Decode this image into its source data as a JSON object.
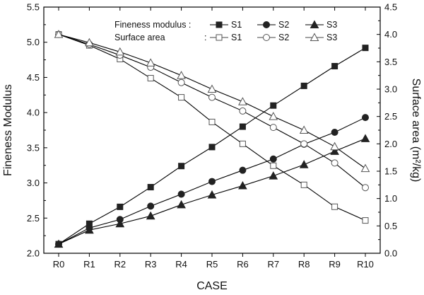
{
  "chart_data": {
    "type": "line",
    "categories": [
      "R0",
      "R1",
      "R2",
      "R3",
      "R4",
      "R5",
      "R6",
      "R7",
      "R8",
      "R9",
      "R10"
    ],
    "xlabel": "CASE",
    "ylabel_left": "Fineness Modulus",
    "ylabel_right": "Surface area (m²/kg)",
    "ylim_left": [
      2.0,
      5.5
    ],
    "yticks_left": [
      "2.0",
      "2.5",
      "3.0",
      "3.5",
      "4.0",
      "4.5",
      "5.0",
      "5.5"
    ],
    "ylim_right": [
      0.0,
      4.5
    ],
    "yticks_right": [
      "0.0",
      "0.5",
      "1.0",
      "1.5",
      "2.0",
      "2.5",
      "3.0",
      "3.5",
      "4.0",
      "4.5"
    ],
    "grid": false,
    "legend_placement": "top-right",
    "legend": {
      "row1_label": "Fineness modulus :",
      "row2_label": "Surface area",
      "row2_colon": ":",
      "names": [
        "S1",
        "S2",
        "S3"
      ]
    },
    "series": [
      {
        "name": "S1",
        "group": "Fineness modulus",
        "axis": "left",
        "marker": "square",
        "filled": true,
        "values": [
          2.13,
          2.42,
          2.66,
          2.94,
          3.24,
          3.51,
          3.8,
          4.1,
          4.38,
          4.66,
          4.92
        ]
      },
      {
        "name": "S2",
        "group": "Fineness modulus",
        "axis": "left",
        "marker": "circle",
        "filled": true,
        "values": [
          2.13,
          2.36,
          2.48,
          2.67,
          2.84,
          3.02,
          3.18,
          3.34,
          3.55,
          3.72,
          3.93
        ]
      },
      {
        "name": "S3",
        "group": "Fineness modulus",
        "axis": "left",
        "marker": "triangle",
        "filled": true,
        "values": [
          2.13,
          2.33,
          2.42,
          2.53,
          2.69,
          2.83,
          2.96,
          3.1,
          3.26,
          3.45,
          3.63
        ]
      },
      {
        "name": "S1",
        "group": "Surface area",
        "axis": "right",
        "marker": "square",
        "filled": false,
        "values": [
          4.0,
          3.8,
          3.55,
          3.2,
          2.85,
          2.4,
          2.0,
          1.6,
          1.25,
          0.85,
          0.6
        ]
      },
      {
        "name": "S2",
        "group": "Surface area",
        "axis": "right",
        "marker": "circle",
        "filled": false,
        "values": [
          4.0,
          3.82,
          3.62,
          3.4,
          3.12,
          2.85,
          2.6,
          2.3,
          2.0,
          1.65,
          1.2
        ]
      },
      {
        "name": "S3",
        "group": "Surface area",
        "axis": "right",
        "marker": "triangle",
        "filled": false,
        "values": [
          4.0,
          3.85,
          3.68,
          3.48,
          3.25,
          3.0,
          2.77,
          2.5,
          2.25,
          1.95,
          1.55
        ]
      }
    ]
  }
}
